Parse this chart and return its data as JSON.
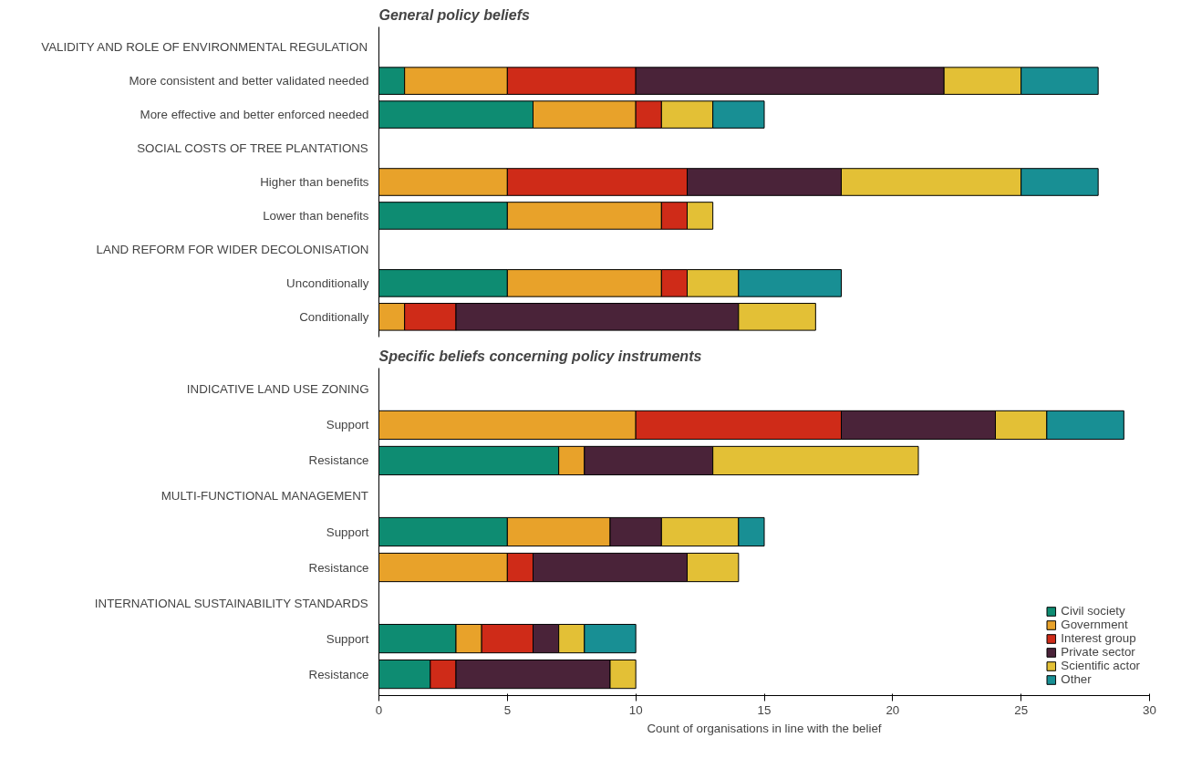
{
  "chart_data": [
    {
      "type": "bar",
      "orientation": "horizontal",
      "stacked": true,
      "title": "General policy beliefs",
      "categories": [
        "VALIDITY AND ROLE OF ENVIRONMENTAL REGULATION",
        "More consistent and better validated needed",
        "More effective and better enforced needed",
        "SOCIAL COSTS OF TREE PLANTATIONS",
        "Higher than benefits",
        "Lower than benefits",
        "LAND REFORM FOR WIDER DECOLONISATION",
        "Unconditionally",
        "Conditionally"
      ],
      "series": [
        {
          "color": "#0e8c72",
          "values": [
            null,
            1,
            6,
            null,
            null,
            5,
            null,
            5,
            null
          ]
        },
        {
          "color": "#e8a22a",
          "values": [
            null,
            4,
            4,
            null,
            5,
            6,
            null,
            6,
            1
          ]
        },
        {
          "color": "#cf2b18",
          "values": [
            null,
            5,
            1,
            null,
            7,
            1,
            null,
            1,
            2
          ]
        },
        {
          "color": "#4a2339",
          "values": [
            null,
            12,
            null,
            null,
            6,
            null,
            null,
            null,
            11
          ]
        },
        {
          "color": "#e3c036",
          "values": [
            null,
            3,
            2,
            null,
            7,
            1,
            null,
            2,
            3
          ]
        },
        {
          "color": "#188f94",
          "values": [
            null,
            3,
            2,
            null,
            3,
            null,
            null,
            4,
            null
          ]
        }
      ],
      "xlim": [
        0,
        30
      ],
      "xticks": [
        0,
        5,
        10,
        15,
        20,
        25,
        30
      ],
      "tick_labels": "y",
      "grid": false,
      "legend": false
    },
    {
      "type": "bar",
      "orientation": "horizontal",
      "stacked": true,
      "title": "Specific beliefs concerning policy instruments",
      "xlabel": "Count of organisations in line with the belief",
      "categories": [
        "INDICATIVE LAND USE ZONING",
        "Support",
        "Resistance",
        "MULTI-FUNCTIONAL MANAGEMENT",
        "Support",
        "Resistance",
        "INTERNATIONAL SUSTAINABILITY STANDARDS",
        "Support",
        "Resistance"
      ],
      "series": [
        {
          "name": "Civil society",
          "color": "#0e8c72",
          "values": [
            null,
            null,
            7,
            null,
            5,
            null,
            null,
            3,
            2
          ]
        },
        {
          "name": "Government",
          "color": "#e8a22a",
          "values": [
            null,
            10,
            1,
            null,
            4,
            5,
            null,
            1,
            null
          ]
        },
        {
          "name": "Interest group",
          "color": "#cf2b18",
          "values": [
            null,
            8,
            null,
            null,
            null,
            1,
            null,
            2,
            1
          ]
        },
        {
          "name": "Private sector",
          "color": "#4a2339",
          "values": [
            null,
            6,
            5,
            null,
            2,
            6,
            null,
            1,
            6
          ]
        },
        {
          "name": "Scientific actor",
          "color": "#e3c036",
          "values": [
            null,
            2,
            8,
            null,
            3,
            2,
            null,
            1,
            1
          ]
        },
        {
          "name": "Other",
          "color": "#188f94",
          "values": [
            null,
            3,
            null,
            null,
            1,
            null,
            null,
            2,
            null
          ]
        }
      ],
      "xlim": [
        0,
        30
      ],
      "xticks": [
        0,
        5,
        10,
        15,
        20,
        25,
        30
      ],
      "grid": false,
      "legend": "bottom right"
    }
  ]
}
